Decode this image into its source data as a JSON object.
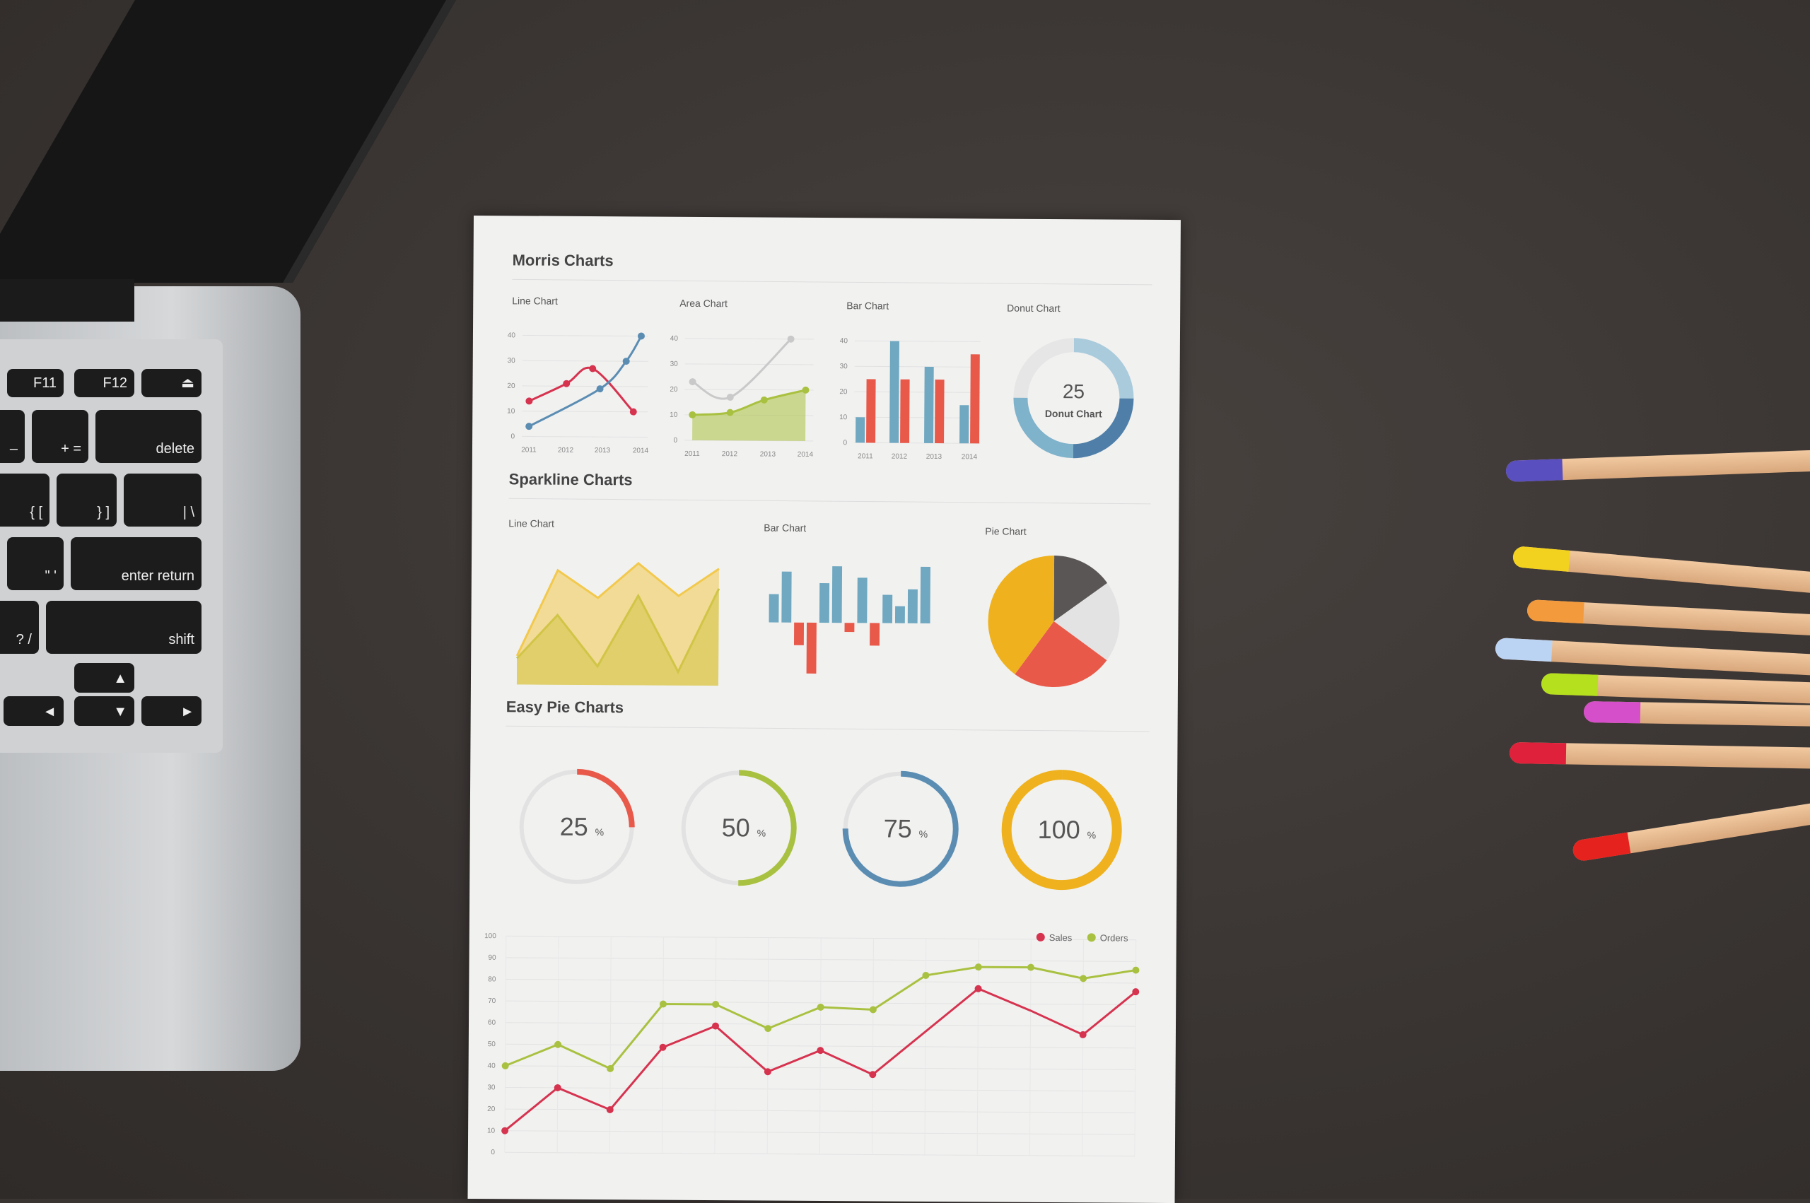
{
  "laptop": {
    "keys": [
      {
        "id": "f11",
        "label": "F11"
      },
      {
        "id": "f12",
        "label": "F12"
      },
      {
        "id": "eject",
        "label": "⏏"
      },
      {
        "id": "minus",
        "label": "–"
      },
      {
        "id": "equals",
        "label": "+ ="
      },
      {
        "id": "delete",
        "label": "delete"
      },
      {
        "id": "lbrace",
        "label": "{ ["
      },
      {
        "id": "rbrace",
        "label": "} ]"
      },
      {
        "id": "pipe",
        "label": "| \\"
      },
      {
        "id": "quote",
        "label": "\" '"
      },
      {
        "id": "enter",
        "label": "enter return"
      },
      {
        "id": "question",
        "label": "? /"
      },
      {
        "id": "shift",
        "label": "shift"
      },
      {
        "id": "left",
        "label": "◄"
      },
      {
        "id": "up",
        "label": "▲"
      },
      {
        "id": "down",
        "label": "▼"
      },
      {
        "id": "right",
        "label": "►"
      }
    ]
  },
  "paper": {
    "morris_title": "Morris Charts",
    "sparkline_title": "Sparkline Charts",
    "easypie_title": "Easy Pie Charts",
    "donut_center_value": "25",
    "donut_center_label": "Donut Chart"
  },
  "chart_data": [
    {
      "id": "morris-line",
      "type": "line",
      "title": "Line Chart",
      "categories": [
        "2011",
        "2012",
        "2013",
        "2014"
      ],
      "yticks": [
        0,
        10,
        20,
        30,
        40
      ],
      "ylim": [
        0,
        40
      ],
      "series": [
        {
          "color": "#d6334f",
          "x": [
            2011,
            2012,
            2012.7,
            2013.8
          ],
          "values": [
            14,
            21,
            27,
            10
          ]
        },
        {
          "color": "#5b8db3",
          "x": [
            2011,
            2012.9,
            2013.6,
            2014
          ],
          "values": [
            4,
            19,
            30,
            40
          ]
        }
      ]
    },
    {
      "id": "morris-area",
      "type": "area",
      "title": "Area Chart",
      "categories": [
        "2011",
        "2012",
        "2013",
        "2014"
      ],
      "yticks": [
        0,
        10,
        20,
        30,
        40
      ],
      "ylim": [
        0,
        40
      ],
      "series": [
        {
          "color": "#a9c140",
          "x": [
            2011,
            2012,
            2012.9,
            2014
          ],
          "values": [
            10,
            11,
            16,
            20
          ]
        },
        {
          "color": "#c9c9c9",
          "x": [
            2011,
            2012,
            2013.6
          ],
          "values": [
            23,
            17,
            40
          ]
        }
      ]
    },
    {
      "id": "morris-bar",
      "type": "bar",
      "title": "Bar Chart",
      "categories": [
        "2011",
        "2012",
        "2013",
        "2014"
      ],
      "yticks": [
        0,
        10,
        20,
        30,
        40
      ],
      "ylim": [
        0,
        40
      ],
      "series": [
        {
          "color": "#6fa8c0",
          "values": [
            10,
            40,
            30,
            15
          ]
        },
        {
          "color": "#e8594a",
          "values": [
            25,
            25,
            25,
            35
          ]
        }
      ]
    },
    {
      "id": "morris-donut",
      "type": "pie",
      "title": "Donut Chart",
      "values": [
        25,
        25,
        25,
        25
      ],
      "colors": [
        "#a9cbdc",
        "#4f7fa8",
        "#7fb2cb",
        "#e6e6e6"
      ]
    },
    {
      "id": "spark-line",
      "type": "area",
      "title": "Line Chart",
      "series": [
        {
          "color": "#f2c94c",
          "values": [
            23,
            92,
            70,
            98,
            72,
            94
          ]
        },
        {
          "color": "#a9c140",
          "values": [
            21,
            56,
            15,
            72,
            11,
            78
          ]
        }
      ]
    },
    {
      "id": "spark-bar",
      "type": "bar",
      "title": "Bar Chart",
      "values": [
        25,
        45,
        -20,
        -45,
        35,
        50,
        -8,
        40,
        -20,
        25,
        15,
        30,
        50
      ],
      "colors": {
        "positive": "#6fa8c0",
        "negative": "#e8594a"
      }
    },
    {
      "id": "spark-pie",
      "type": "pie",
      "title": "Pie Chart",
      "values": [
        15,
        20,
        25,
        40
      ],
      "colors": [
        "#5a5655",
        "#e3e3e3",
        "#e8594a",
        "#efb21e"
      ]
    },
    {
      "id": "easy-pies",
      "type": "pie",
      "values": [
        {
          "value": 25,
          "color": "#e8594a"
        },
        {
          "value": 50,
          "color": "#a9c140"
        },
        {
          "value": 75,
          "color": "#5b8db3"
        },
        {
          "value": 100,
          "color": "#efb21e"
        }
      ],
      "unit": "%"
    },
    {
      "id": "sales-orders",
      "type": "line",
      "yticks": [
        0,
        10,
        20,
        30,
        40,
        50,
        60,
        70,
        80,
        90,
        100
      ],
      "ylim": [
        0,
        100
      ],
      "legend": "top-right",
      "series": [
        {
          "name": "Sales",
          "color": "#d6334f",
          "values": [
            10,
            30,
            20,
            49,
            59,
            38,
            48,
            37,
            57,
            77,
            67,
            56,
            76
          ],
          "markers": [
            0,
            1,
            2,
            3,
            4,
            5,
            6,
            7,
            9,
            11,
            12
          ]
        },
        {
          "name": "Orders",
          "color": "#a9c140",
          "values": [
            40,
            50,
            39,
            69,
            69,
            58,
            68,
            67,
            83,
            87,
            87,
            82,
            86
          ]
        }
      ]
    }
  ],
  "pencils": [
    {
      "color": "#5a4fbf"
    },
    {
      "color": "#f3d21f"
    },
    {
      "color": "#f39a3d"
    },
    {
      "color": "#bcd4f3"
    },
    {
      "color": "#b5e01e"
    },
    {
      "color": "#d44fc9"
    },
    {
      "color": "#e0213b"
    },
    {
      "color": "#e6221e"
    }
  ]
}
